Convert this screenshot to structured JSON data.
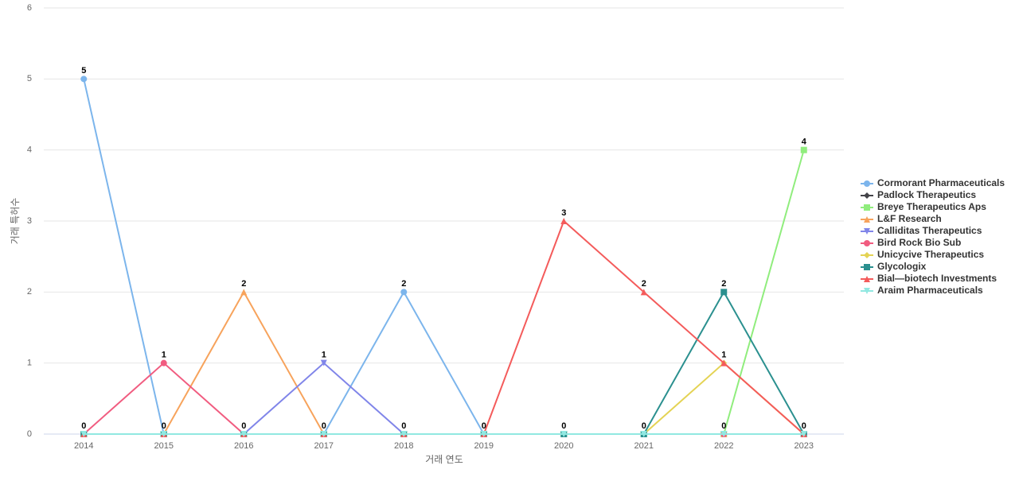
{
  "chart_data": {
    "type": "line",
    "x_label": "거래 연도",
    "y_label": "거래 특허수",
    "categories": [
      "2014",
      "2015",
      "2016",
      "2017",
      "2018",
      "2019",
      "2020",
      "2021",
      "2022",
      "2023"
    ],
    "ylim": [
      0,
      6
    ],
    "yticks": [
      0,
      1,
      2,
      3,
      4,
      5,
      6
    ],
    "grid": true,
    "legend": "right",
    "series": [
      {
        "name": "Cormorant Pharmaceuticals",
        "color": "#7cb5ec",
        "marker": "circle",
        "values": [
          5,
          0,
          0,
          0,
          2,
          0,
          0,
          0,
          0,
          0
        ]
      },
      {
        "name": "Padlock Therapeutics",
        "color": "#434348",
        "marker": "diamond",
        "values": [
          0,
          0,
          0,
          0,
          0,
          0,
          0,
          0,
          0,
          0
        ]
      },
      {
        "name": "Breye Therapeutics Aps",
        "color": "#90ed7d",
        "marker": "square",
        "values": [
          0,
          0,
          0,
          0,
          0,
          0,
          0,
          0,
          0,
          4
        ]
      },
      {
        "name": "L&F Research",
        "color": "#f7a35c",
        "marker": "triangle",
        "values": [
          0,
          0,
          2,
          0,
          0,
          0,
          0,
          0,
          0,
          0
        ]
      },
      {
        "name": "Calliditas Therapeutics",
        "color": "#8085e9",
        "marker": "triangle-down",
        "values": [
          0,
          0,
          0,
          1,
          0,
          0,
          0,
          0,
          0,
          0
        ]
      },
      {
        "name": "Bird Rock Bio Sub",
        "color": "#f15c80",
        "marker": "circle",
        "values": [
          0,
          1,
          0,
          0,
          0,
          0,
          0,
          0,
          0,
          0
        ]
      },
      {
        "name": "Unicycive Therapeutics",
        "color": "#e4d354",
        "marker": "diamond",
        "values": [
          0,
          0,
          0,
          0,
          0,
          0,
          0,
          0,
          1,
          0
        ]
      },
      {
        "name": "Glycologix",
        "color": "#2b908f",
        "marker": "square",
        "values": [
          0,
          0,
          0,
          0,
          0,
          0,
          0,
          0,
          2,
          0
        ]
      },
      {
        "name": "Bial—biotech Investments",
        "color": "#f45b5b",
        "marker": "triangle",
        "values": [
          0,
          0,
          0,
          0,
          0,
          0,
          3,
          2,
          1,
          0
        ]
      },
      {
        "name": "Araim Pharmaceuticals",
        "color": "#91e8e1",
        "marker": "triangle-down",
        "values": [
          0,
          0,
          0,
          0,
          0,
          0,
          0,
          0,
          0,
          0
        ]
      }
    ]
  }
}
